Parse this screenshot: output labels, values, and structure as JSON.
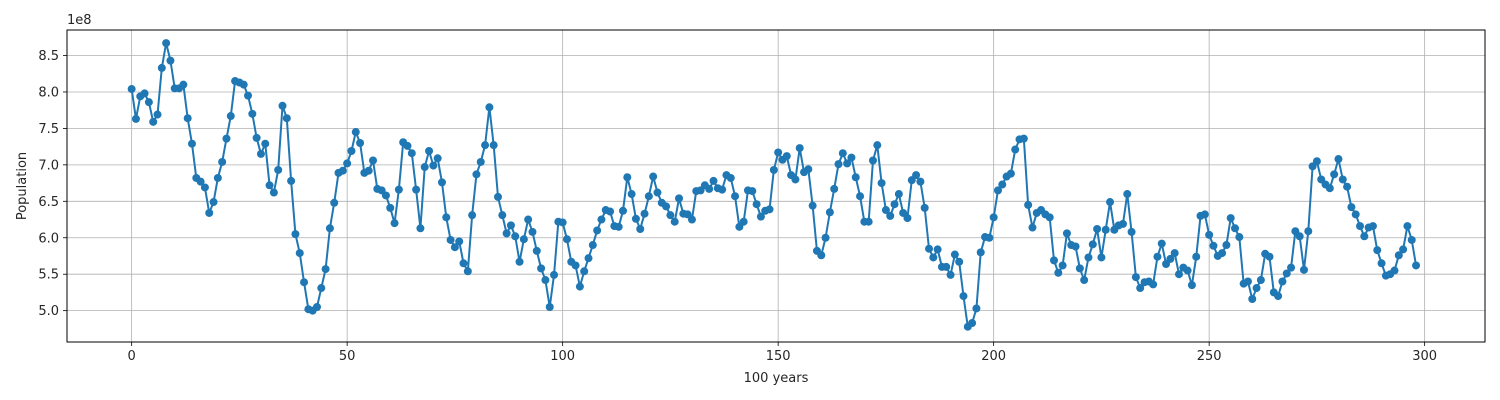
{
  "chart_data": {
    "type": "line",
    "xlabel": "100 years",
    "ylabel": "Population",
    "y_offset_label": "1e8",
    "xlim": [
      -15,
      314
    ],
    "ylim": [
      4.57,
      8.85
    ],
    "x_ticks": [
      0,
      50,
      100,
      150,
      200,
      250,
      300
    ],
    "y_ticks": [
      5.0,
      5.5,
      6.0,
      6.5,
      7.0,
      7.5,
      8.0,
      8.5
    ],
    "y_tick_labels": [
      "5.0",
      "5.5",
      "6.0",
      "6.5",
      "7.0",
      "7.5",
      "8.0",
      "8.5"
    ],
    "grid": true,
    "markers": true,
    "color": "#1f77b4",
    "y": [
      8.04,
      7.63,
      7.94,
      7.98,
      7.86,
      7.59,
      7.69,
      8.33,
      8.67,
      8.43,
      8.05,
      8.05,
      8.1,
      7.64,
      7.29,
      6.82,
      6.77,
      6.69,
      6.34,
      6.49,
      6.82,
      7.04,
      7.36,
      7.67,
      8.15,
      8.13,
      8.1,
      7.95,
      7.7,
      7.37,
      7.15,
      7.29,
      6.72,
      6.62,
      6.93,
      7.81,
      7.64,
      6.78,
      6.05,
      5.79,
      5.39,
      5.02,
      5.0,
      5.05,
      5.31,
      5.57,
      6.13,
      6.48,
      6.89,
      6.92,
      7.02,
      7.19,
      7.45,
      7.3,
      6.89,
      6.92,
      7.06,
      6.67,
      6.65,
      6.58,
      6.41,
      6.2,
      6.66,
      7.31,
      7.26,
      7.16,
      6.66,
      6.13,
      6.97,
      7.19,
      6.99,
      7.09,
      6.76,
      6.28,
      5.97,
      5.87,
      5.95,
      5.65,
      5.54,
      6.31,
      6.87,
      7.04,
      7.27,
      7.79,
      7.27,
      6.56,
      6.31,
      6.06,
      6.17,
      6.02,
      5.67,
      5.98,
      6.25,
      6.08,
      5.82,
      5.58,
      5.42,
      5.05,
      5.49,
      6.22,
      6.21,
      5.98,
      5.67,
      5.62,
      5.33,
      5.54,
      5.72,
      5.9,
      6.1,
      6.25,
      6.38,
      6.36,
      6.16,
      6.15,
      6.37,
      6.83,
      6.6,
      6.26,
      6.12,
      6.33,
      6.57,
      6.84,
      6.62,
      6.48,
      6.43,
      6.31,
      6.22,
      6.54,
      6.33,
      6.32,
      6.25,
      6.64,
      6.65,
      6.72,
      6.67,
      6.78,
      6.68,
      6.66,
      6.86,
      6.82,
      6.57,
      6.15,
      6.22,
      6.65,
      6.64,
      6.46,
      6.29,
      6.37,
      6.39,
      6.93,
      7.17,
      7.07,
      7.12,
      6.86,
      6.8,
      7.23,
      6.9,
      6.94,
      6.44,
      5.82,
      5.76,
      6.0,
      6.35,
      6.67,
      7.01,
      7.16,
      7.02,
      7.1,
      6.83,
      6.57,
      6.22,
      6.22,
      7.06,
      7.27,
      6.75,
      6.38,
      6.3,
      6.46,
      6.6,
      6.34,
      6.27,
      6.79,
      6.86,
      6.77,
      6.41,
      5.85,
      5.73,
      5.84,
      5.6,
      5.6,
      5.49,
      5.77,
      5.67,
      5.2,
      4.78,
      4.83,
      5.03,
      5.8,
      6.01,
      6.0,
      6.28,
      6.65,
      6.73,
      6.84,
      6.88,
      7.21,
      7.35,
      7.36,
      6.45,
      6.14,
      6.34,
      6.38,
      6.32,
      6.28,
      5.69,
      5.52,
      5.62,
      6.06,
      5.9,
      5.88,
      5.58,
      5.42,
      5.73,
      5.91,
      6.12,
      5.73,
      6.11,
      6.49,
      6.11,
      6.17,
      6.19,
      6.6,
      6.08,
      5.46,
      5.31,
      5.39,
      5.4,
      5.36,
      5.74,
      5.92,
      5.64,
      5.71,
      5.79,
      5.5,
      5.59,
      5.55,
      5.35,
      5.74,
      6.3,
      6.32,
      6.04,
      5.89,
      5.75,
      5.79,
      5.9,
      6.27,
      6.13,
      6.01,
      5.37,
      5.4,
      5.16,
      5.31,
      5.42,
      5.78,
      5.74,
      5.25,
      5.2,
      5.4,
      5.51,
      5.59,
      6.09,
      6.02,
      5.56,
      6.09,
      6.98,
      7.05,
      6.8,
      6.73,
      6.68,
      6.87,
      7.08,
      6.8,
      6.7,
      6.42,
      6.32,
      6.16,
      6.02,
      6.14,
      6.16,
      5.83,
      5.65,
      5.48,
      5.5,
      5.55,
      5.76,
      5.84,
      6.16,
      5.97,
      5.62
    ]
  }
}
